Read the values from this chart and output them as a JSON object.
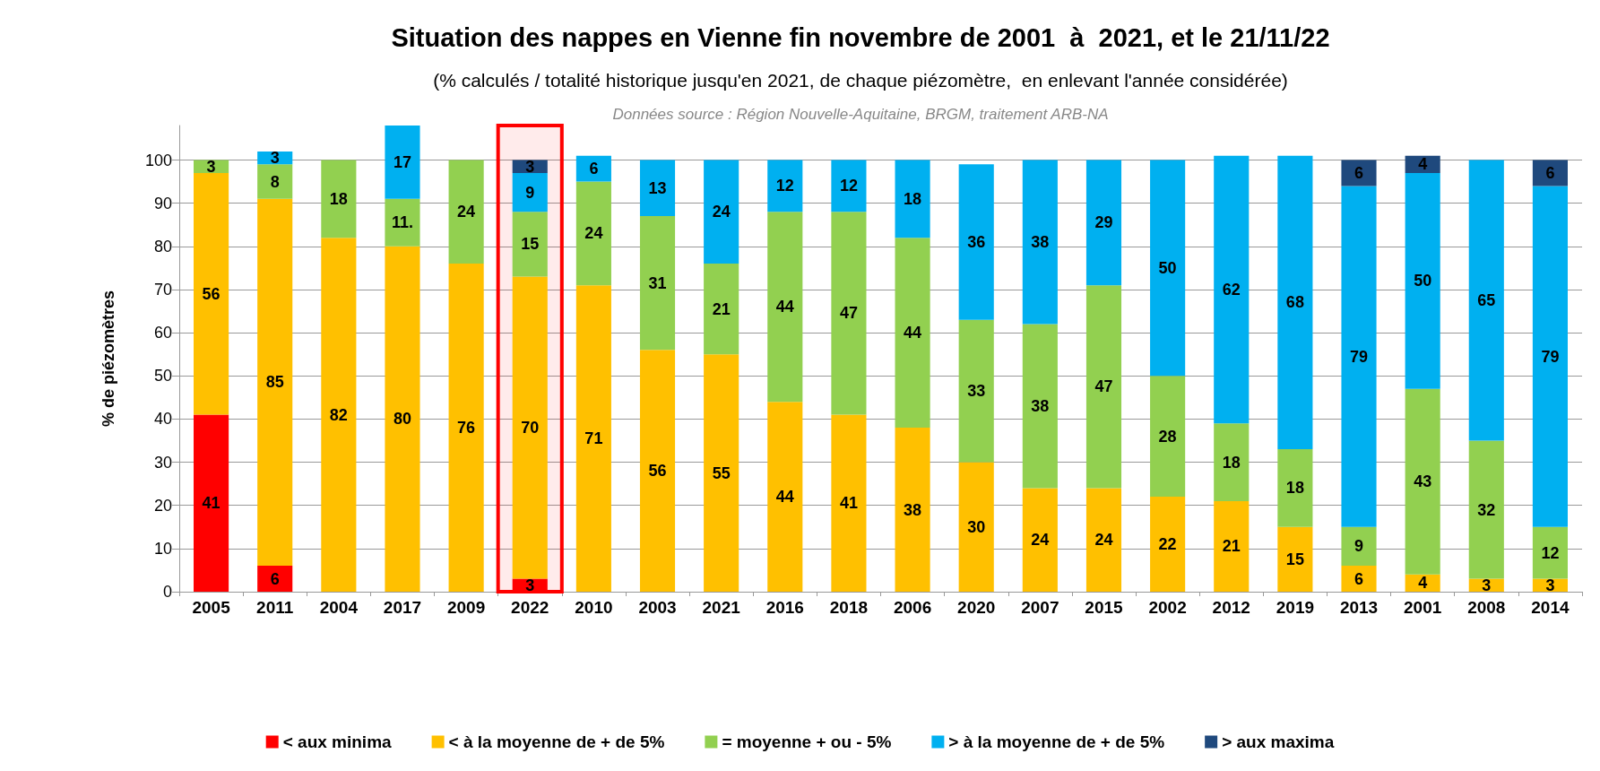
{
  "chart_data": {
    "type": "bar",
    "stacked": true,
    "title": "Situation des nappes en Vienne fin novembre de 2001  à  2021, et le 21/11/22",
    "subtitle": "(% calculés / totalité historique jusqu'en 2021, de chaque piézomètre,  en enlevant l'année considérée)",
    "annotations": [
      "Données source : Région Nouvelle-Aquitaine, BRGM, traitement ARB-NA"
    ],
    "ylabel": "% de piézomètres",
    "categories": [
      "2005",
      "2011",
      "2004",
      "2017",
      "2009",
      "2022",
      "2010",
      "2003",
      "2021",
      "2016",
      "2018",
      "2006",
      "2020",
      "2007",
      "2015",
      "2002",
      "2012",
      "2019",
      "2013",
      "2001",
      "2008",
      "2014"
    ],
    "series": [
      {
        "name": "< aux minima",
        "color": "#ff0000",
        "values": [
          41,
          6,
          null,
          null,
          null,
          3,
          null,
          null,
          null,
          null,
          null,
          null,
          null,
          null,
          null,
          null,
          null,
          null,
          null,
          null,
          null,
          null
        ],
        "value_labels": [
          "41",
          "6",
          null,
          null,
          null,
          "3",
          null,
          null,
          null,
          null,
          null,
          null,
          null,
          null,
          null,
          null,
          null,
          null,
          null,
          null,
          null,
          null
        ]
      },
      {
        "name": "< à la moyenne de + de 5%",
        "color": "#ffc000",
        "values": [
          56,
          85,
          82,
          80,
          76,
          70,
          71,
          56,
          55,
          44,
          41,
          38,
          30,
          24,
          24,
          22,
          21,
          15,
          6,
          4,
          3,
          3
        ],
        "value_labels": [
          "56",
          "85",
          "82",
          "80",
          "76",
          "70",
          "71",
          "56",
          "55",
          "44",
          "41",
          "38",
          "30",
          "24",
          "24",
          "22",
          "21",
          "15",
          "6",
          "4",
          "3",
          "3"
        ]
      },
      {
        "name": "= moyenne + ou - 5%",
        "color": "#92d050",
        "values": [
          3,
          8,
          18,
          11,
          24,
          15,
          24,
          31,
          21,
          44,
          47,
          44,
          33,
          38,
          47,
          28,
          18,
          18,
          9,
          43,
          32,
          12
        ],
        "value_labels": [
          "3",
          "8",
          "18",
          "11.",
          "24",
          "15",
          "24",
          "31",
          "21",
          "44",
          "47",
          "44",
          "33",
          "38",
          "47",
          "28",
          "18",
          "18",
          "9",
          "43",
          "32",
          "12"
        ]
      },
      {
        "name": "> à la moyenne de + de 5%",
        "color": "#00b0f0",
        "values": [
          null,
          3,
          null,
          17,
          null,
          9,
          6,
          13,
          24,
          12,
          12,
          18,
          36,
          38,
          29,
          50,
          62,
          68,
          79,
          50,
          65,
          79
        ],
        "value_labels": [
          null,
          "3",
          null,
          "17",
          null,
          "9",
          "6",
          "13",
          "24",
          "12",
          "12",
          "18",
          "36",
          "38",
          "29",
          "50",
          "62",
          "68",
          "79",
          "50",
          "65",
          "79"
        ]
      },
      {
        "name": "> aux maxima",
        "color": "#1f497d",
        "values": [
          null,
          null,
          null,
          null,
          null,
          3,
          null,
          null,
          null,
          null,
          null,
          null,
          null,
          null,
          null,
          null,
          null,
          null,
          6,
          4,
          null,
          6
        ],
        "value_labels": [
          null,
          null,
          null,
          null,
          null,
          "3",
          null,
          null,
          null,
          null,
          null,
          null,
          null,
          null,
          null,
          null,
          null,
          null,
          "6",
          "4",
          null,
          "6"
        ]
      }
    ],
    "ylim": [
      0,
      108
    ],
    "yticks": [
      0,
      10,
      20,
      30,
      40,
      50,
      60,
      70,
      80,
      90,
      100
    ],
    "bands": [
      {
        "axis": "x",
        "from": "2022",
        "to": "2022",
        "color": "#ff0000"
      }
    ],
    "grid": true,
    "legend": "bottom"
  }
}
